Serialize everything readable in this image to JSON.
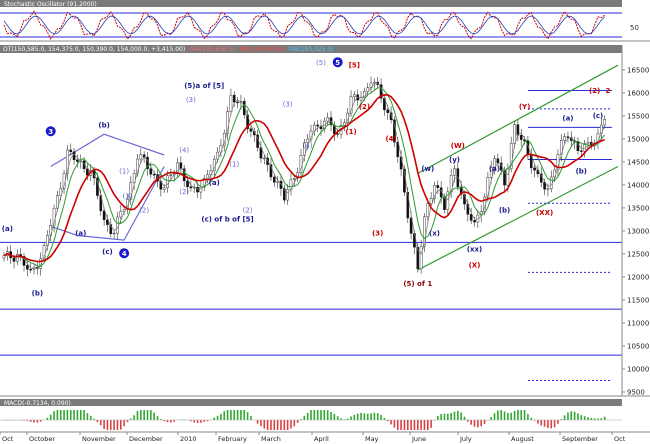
{
  "osc_panel": {
    "title": "Stochastic Oscillator (91.2000)",
    "ticks": [
      "50"
    ],
    "colors": {
      "header": "#7a7a7a",
      "k_line": "#cc0000",
      "d_line": "#1f3fbf",
      "band": "#2a2ad8"
    }
  },
  "main_panel": {
    "legend": [
      {
        "text": "OT(150,585.0, 154,375.0, 150,390.0, 154,000.0, +3,415.00)",
        "color": "#ffffff"
      },
      {
        "text": "MA(145,606.5)",
        "color": "#ff6b6b"
      },
      {
        "text": "MA(139,968.8)",
        "color": "#ff4a4a"
      },
      {
        "text": "MA(150,025.0)",
        "color": "#4ac9ff"
      }
    ],
    "header_color": "#7a7a7a"
  },
  "volume_panel": {
    "legend": "MACD(-0.7134, 0.090)",
    "colors": {
      "header": "#7a7a7a",
      "positive": "#2fa82f",
      "negative": "#d94040",
      "line": "#1f3fbf"
    }
  },
  "chart_data": {
    "type": "candlestick",
    "ylim": [
      9500,
      16800
    ],
    "y_ticks": [
      16500,
      16000,
      15500,
      15000,
      14500,
      14000,
      13500,
      13000,
      12500,
      12000,
      11500,
      11000,
      10500,
      10000,
      9500
    ],
    "x_labels": [
      "Oct",
      "October",
      "November",
      "December",
      "2010",
      "February",
      "March",
      "April",
      "May",
      "June",
      "July",
      "August",
      "September",
      "Oct"
    ],
    "close_series": [
      {
        "x": 0,
        "y": 12400
      },
      {
        "x": 4,
        "y": 12500
      },
      {
        "x": 8,
        "y": 12050
      },
      {
        "x": 12,
        "y": 12600
      },
      {
        "x": 16,
        "y": 13700
      },
      {
        "x": 19,
        "y": 14700
      },
      {
        "x": 22,
        "y": 14500
      },
      {
        "x": 26,
        "y": 14300
      },
      {
        "x": 30,
        "y": 13200
      },
      {
        "x": 33,
        "y": 13000
      },
      {
        "x": 37,
        "y": 13700
      },
      {
        "x": 40,
        "y": 14650
      },
      {
        "x": 44,
        "y": 14300
      },
      {
        "x": 48,
        "y": 13900
      },
      {
        "x": 52,
        "y": 14500
      },
      {
        "x": 56,
        "y": 13800
      },
      {
        "x": 60,
        "y": 14100
      },
      {
        "x": 64,
        "y": 14600
      },
      {
        "x": 68,
        "y": 15900
      },
      {
        "x": 71,
        "y": 15700
      },
      {
        "x": 74,
        "y": 15200
      },
      {
        "x": 77,
        "y": 14600
      },
      {
        "x": 80,
        "y": 14300
      },
      {
        "x": 84,
        "y": 13700
      },
      {
        "x": 88,
        "y": 14400
      },
      {
        "x": 92,
        "y": 15200
      },
      {
        "x": 96,
        "y": 15400
      },
      {
        "x": 100,
        "y": 15100
      },
      {
        "x": 104,
        "y": 15800
      },
      {
        "x": 108,
        "y": 16000
      },
      {
        "x": 110,
        "y": 16300
      },
      {
        "x": 113,
        "y": 15900
      },
      {
        "x": 116,
        "y": 15400
      },
      {
        "x": 118,
        "y": 14600
      },
      {
        "x": 120,
        "y": 13800
      },
      {
        "x": 122,
        "y": 13000
      },
      {
        "x": 124,
        "y": 12200
      },
      {
        "x": 126,
        "y": 13200
      },
      {
        "x": 129,
        "y": 14100
      },
      {
        "x": 132,
        "y": 13500
      },
      {
        "x": 135,
        "y": 14400
      },
      {
        "x": 138,
        "y": 13500
      },
      {
        "x": 141,
        "y": 13100
      },
      {
        "x": 144,
        "y": 13800
      },
      {
        "x": 147,
        "y": 14600
      },
      {
        "x": 150,
        "y": 14100
      },
      {
        "x": 153,
        "y": 15200
      },
      {
        "x": 156,
        "y": 14900
      },
      {
        "x": 160,
        "y": 14100
      },
      {
        "x": 163,
        "y": 13900
      },
      {
        "x": 166,
        "y": 14700
      },
      {
        "x": 169,
        "y": 15100
      },
      {
        "x": 172,
        "y": 14800
      },
      {
        "x": 175,
        "y": 14800
      },
      {
        "x": 178,
        "y": 15100
      },
      {
        "x": 180,
        "y": 15500
      }
    ],
    "horizontal_lines": [
      {
        "y": 12750,
        "style": "solid",
        "color": "#2a2ad8"
      },
      {
        "y": 11300,
        "style": "solid",
        "color": "#2a2ad8"
      },
      {
        "y": 10300,
        "style": "solid",
        "color": "#2a2ad8"
      },
      {
        "y": 16050,
        "style": "short",
        "color": "#2a2ad8"
      },
      {
        "y": 15650,
        "style": "dotted",
        "color": "#2a2ad8"
      },
      {
        "y": 15250,
        "style": "short",
        "color": "#2a2ad8"
      },
      {
        "y": 14550,
        "style": "short",
        "color": "#2a2ad8"
      },
      {
        "y": 13600,
        "style": "dotted",
        "color": "#2a2ad8"
      },
      {
        "y": 12100,
        "style": "dotted",
        "color": "#2a2ad8"
      },
      {
        "y": 9750,
        "style": "dotted",
        "color": "#2a2ad8"
      }
    ],
    "annotations": [
      {
        "text": "3",
        "x": 14,
        "y": 15100,
        "color": "#1a1acc",
        "style": "circle"
      },
      {
        "text": "(b)",
        "x": 30,
        "y": 15250,
        "color": "#1a1a8c"
      },
      {
        "text": "(a)",
        "x": 23,
        "y": 12900,
        "color": "#1a1a8c"
      },
      {
        "text": "(c)",
        "x": 31,
        "y": 12500,
        "color": "#1a1a8c"
      },
      {
        "text": "4",
        "x": 36,
        "y": 12450,
        "color": "#1a1acc",
        "style": "circle"
      },
      {
        "text": "(a)",
        "x": 1,
        "y": 13000,
        "color": "#1a1a8c"
      },
      {
        "text": "(b)",
        "x": 10,
        "y": 11600,
        "color": "#1a1a8c"
      },
      {
        "text": "(5)a of [5]",
        "x": 60,
        "y": 16100,
        "color": "#1a1a8c"
      },
      {
        "text": "(a)",
        "x": 63,
        "y": 14000,
        "color": "#1a1a8c"
      },
      {
        "text": "(c) of b of [5]",
        "x": 67,
        "y": 13200,
        "color": "#1a1a8c"
      },
      {
        "text": "5",
        "x": 100,
        "y": 16600,
        "color": "#1a1acc",
        "style": "circle"
      },
      {
        "text": "[5]",
        "x": 105,
        "y": 16550,
        "color": "#cc0000"
      },
      {
        "text": "(2)",
        "x": 108,
        "y": 15650,
        "color": "#cc0000"
      },
      {
        "text": "(1)",
        "x": 104,
        "y": 15100,
        "color": "#cc0000"
      },
      {
        "text": "(4)",
        "x": 116,
        "y": 14950,
        "color": "#cc0000"
      },
      {
        "text": "(3)",
        "x": 112,
        "y": 12900,
        "color": "#cc0000"
      },
      {
        "text": "(5) of 1",
        "x": 124,
        "y": 11800,
        "color": "#8b0000"
      },
      {
        "text": "(W)",
        "x": 136,
        "y": 14800,
        "color": "#cc0000"
      },
      {
        "text": "(w)",
        "x": 127,
        "y": 14300,
        "color": "#1a1a8c"
      },
      {
        "text": "(x)",
        "x": 129,
        "y": 12900,
        "color": "#1a1a8c"
      },
      {
        "text": "(y)",
        "x": 135,
        "y": 14500,
        "color": "#1a1a8c"
      },
      {
        "text": "(a)",
        "x": 147,
        "y": 14300,
        "color": "#1a1a8c"
      },
      {
        "text": "(b)",
        "x": 150,
        "y": 13400,
        "color": "#1a1a8c"
      },
      {
        "text": "(xx)",
        "x": 141,
        "y": 12550,
        "color": "#1a1a8c"
      },
      {
        "text": "(X)",
        "x": 141,
        "y": 12200,
        "color": "#cc0000"
      },
      {
        "text": "(Y)",
        "x": 156,
        "y": 15650,
        "color": "#cc0000"
      },
      {
        "text": "(a)",
        "x": 169,
        "y": 15400,
        "color": "#1a1a8c"
      },
      {
        "text": "(b)",
        "x": 173,
        "y": 14250,
        "color": "#1a1a8c"
      },
      {
        "text": "(XX)",
        "x": 162,
        "y": 13350,
        "color": "#cc0000"
      },
      {
        "text": "(c)",
        "x": 178,
        "y": 15450,
        "color": "#1a1a8c"
      },
      {
        "text": "(2)",
        "x": 177,
        "y": 16000,
        "color": "#cc0000"
      },
      {
        "text": "2",
        "x": 181,
        "y": 16000,
        "color": "#cc0000"
      },
      {
        "text": "(4)",
        "x": 54,
        "y": 14700,
        "color": "#6a6ad8"
      },
      {
        "text": "(3)",
        "x": 56,
        "y": 15800,
        "color": "#6a6ad8"
      },
      {
        "text": "(2)",
        "x": 54,
        "y": 13800,
        "color": "#6a6ad8"
      },
      {
        "text": "(1)",
        "x": 36,
        "y": 14250,
        "color": "#6a6ad8"
      },
      {
        "text": "(3)",
        "x": 37,
        "y": 13700,
        "color": "#6a6ad8"
      },
      {
        "text": "(2)",
        "x": 42,
        "y": 13400,
        "color": "#6a6ad8"
      },
      {
        "text": "(1)",
        "x": 69,
        "y": 14400,
        "color": "#6a6ad8"
      },
      {
        "text": "(2)",
        "x": 73,
        "y": 13400,
        "color": "#6a6ad8"
      },
      {
        "text": "(3)",
        "x": 85,
        "y": 15700,
        "color": "#6a6ad8"
      },
      {
        "text": "(4)",
        "x": 91,
        "y": 14800,
        "color": "#6a6ad8"
      },
      {
        "text": "(5)",
        "x": 95,
        "y": 16600,
        "color": "#6a6ad8"
      }
    ],
    "trendlines": [
      {
        "name": "channel-upper",
        "points": [
          [
            124,
            14250
          ],
          [
            184,
            16600
          ]
        ],
        "color": "#2f9a2f"
      },
      {
        "name": "channel-lower",
        "points": [
          [
            124,
            12150
          ],
          [
            184,
            14400
          ]
        ],
        "color": "#2f9a2f"
      },
      {
        "name": "triangle-top",
        "points": [
          [
            14,
            14400
          ],
          [
            30,
            15100
          ],
          [
            48,
            14650
          ]
        ],
        "color": "#6a6ad8"
      },
      {
        "name": "triangle-bottom",
        "points": [
          [
            14,
            13100
          ],
          [
            22,
            12900
          ],
          [
            36,
            12800
          ],
          [
            48,
            14400
          ]
        ],
        "color": "#6a6ad8"
      }
    ]
  }
}
